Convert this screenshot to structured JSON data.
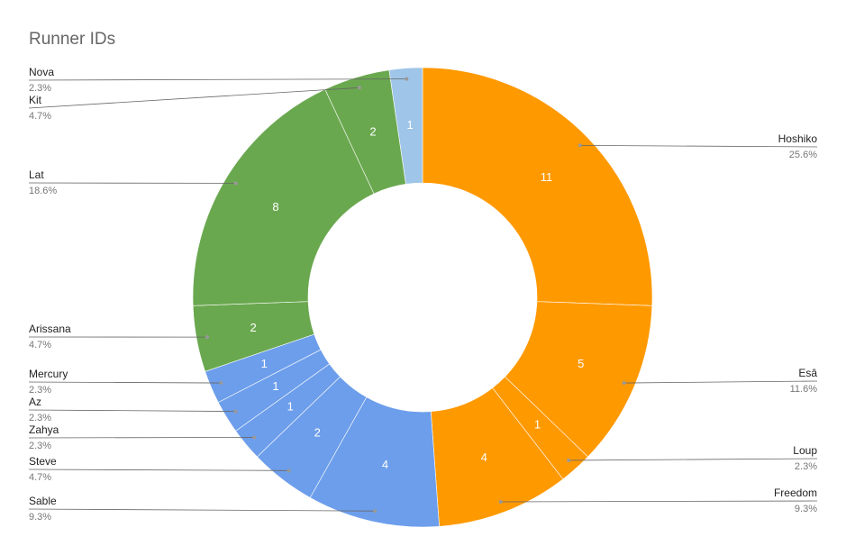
{
  "chart_data": {
    "type": "donut",
    "title": "Runner IDs",
    "categories": [
      "Hoshiko",
      "Esâ",
      "Loup",
      "Freedom",
      "Sable",
      "Steve",
      "Zahya",
      "Az",
      "Mercury",
      "Arissana",
      "Lat",
      "Kit",
      "Nova"
    ],
    "values": [
      11,
      5,
      1,
      4,
      4,
      2,
      1,
      1,
      1,
      2,
      8,
      2,
      1
    ],
    "percent_labels": [
      "25.6%",
      "11.6%",
      "2.3%",
      "9.3%",
      "9.3%",
      "4.7%",
      "2.3%",
      "2.3%",
      "2.3%",
      "4.7%",
      "18.6%",
      "4.7%",
      "2.3%"
    ],
    "colors": [
      "#ff9900",
      "#ff9900",
      "#ff9900",
      "#ff9900",
      "#6d9eeb",
      "#6d9eeb",
      "#6d9eeb",
      "#6d9eeb",
      "#6d9eeb",
      "#6aa84f",
      "#6aa84f",
      "#6aa84f",
      "#9fc5e8"
    ]
  }
}
